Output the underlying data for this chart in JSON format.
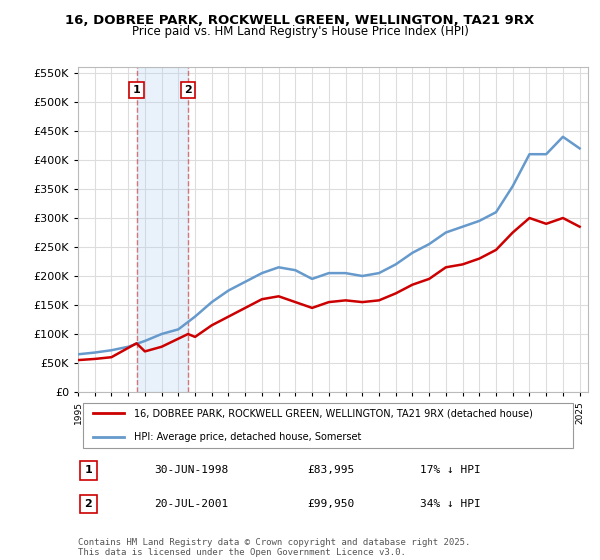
{
  "title": "16, DOBREE PARK, ROCKWELL GREEN, WELLINGTON, TA21 9RX",
  "subtitle": "Price paid vs. HM Land Registry's House Price Index (HPI)",
  "legend_line1": "16, DOBREE PARK, ROCKWELL GREEN, WELLINGTON, TA21 9RX (detached house)",
  "legend_line2": "HPI: Average price, detached house, Somerset",
  "transaction1_label": "1",
  "transaction1_date": "30-JUN-1998",
  "transaction1_price": "£83,995",
  "transaction1_hpi": "17% ↓ HPI",
  "transaction1_x": 1998.5,
  "transaction2_label": "2",
  "transaction2_date": "20-JUL-2001",
  "transaction2_price": "£99,950",
  "transaction2_hpi": "34% ↓ HPI",
  "transaction2_x": 2001.58,
  "footer": "Contains HM Land Registry data © Crown copyright and database right 2025.\nThis data is licensed under the Open Government Licence v3.0.",
  "ylim": [
    0,
    560000
  ],
  "yticks": [
    0,
    50000,
    100000,
    150000,
    200000,
    250000,
    300000,
    350000,
    400000,
    450000,
    500000,
    550000
  ],
  "background_color": "#ffffff",
  "plot_bg_color": "#ffffff",
  "grid_color": "#dddddd",
  "red_color": "#cc0000",
  "blue_color": "#6699cc",
  "hpi_years": [
    1995,
    1996,
    1997,
    1998,
    1999,
    2000,
    2001,
    2002,
    2003,
    2004,
    2005,
    2006,
    2007,
    2008,
    2009,
    2010,
    2011,
    2012,
    2013,
    2014,
    2015,
    2016,
    2017,
    2018,
    2019,
    2020,
    2021,
    2022,
    2023,
    2024,
    2025
  ],
  "hpi_values": [
    65000,
    68000,
    72000,
    78000,
    88000,
    100000,
    108000,
    130000,
    155000,
    175000,
    190000,
    205000,
    215000,
    210000,
    195000,
    205000,
    205000,
    200000,
    205000,
    220000,
    240000,
    255000,
    275000,
    285000,
    295000,
    310000,
    355000,
    410000,
    410000,
    440000,
    420000
  ],
  "price_years": [
    1995,
    1996,
    1997,
    1998.5,
    1999,
    2000,
    2001.58,
    2002,
    2003,
    2004,
    2005,
    2006,
    2007,
    2008,
    2009,
    2010,
    2011,
    2012,
    2013,
    2014,
    2015,
    2016,
    2017,
    2018,
    2019,
    2020,
    2021,
    2022,
    2023,
    2024,
    2025
  ],
  "price_values": [
    55000,
    57000,
    60000,
    83995,
    70000,
    78000,
    99950,
    95000,
    115000,
    130000,
    145000,
    160000,
    165000,
    155000,
    145000,
    155000,
    158000,
    155000,
    158000,
    170000,
    185000,
    195000,
    215000,
    220000,
    230000,
    245000,
    275000,
    300000,
    290000,
    300000,
    285000
  ]
}
